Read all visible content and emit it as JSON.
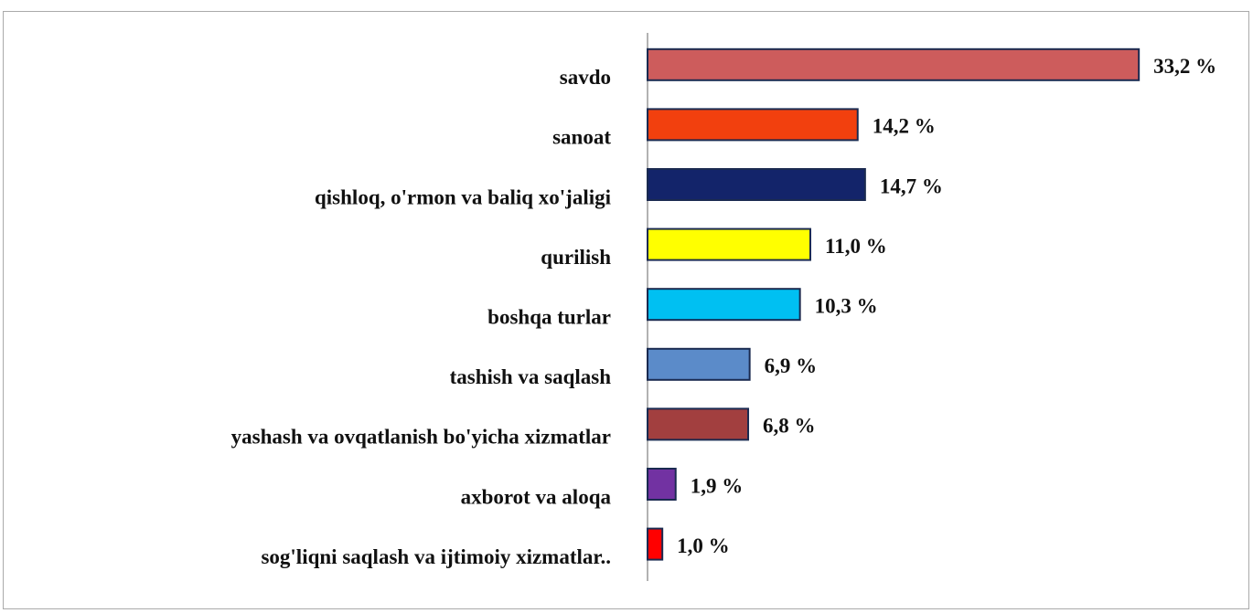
{
  "chart_data": {
    "type": "barh",
    "categories": [
      "savdo",
      "sanoat",
      "qishloq, o'rmon va baliq xo'jaligi",
      "qurilish",
      "boshqa turlar",
      "tashish va saqlash",
      "yashash va ovqatlanish bo'yicha xizmatlar",
      "axborot va aloqa",
      "sog'liqni saqlash va ijtimoiy xizmatlar.."
    ],
    "values": [
      33.2,
      14.2,
      14.7,
      11.0,
      10.3,
      6.9,
      6.8,
      1.9,
      1.0
    ],
    "value_labels": [
      "33,2 %",
      "14,2 %",
      "14,7 %",
      "11,0 %",
      "10,3 %",
      "6,9 %",
      "6,8 %",
      "1,9 %",
      "1,0 %"
    ],
    "colors": [
      "#cd5c5c",
      "#f2400e",
      "#13246a",
      "#ffff00",
      "#00c0f2",
      "#5b8bc9",
      "#a23f3f",
      "#7232a2",
      "#ff0000"
    ]
  }
}
